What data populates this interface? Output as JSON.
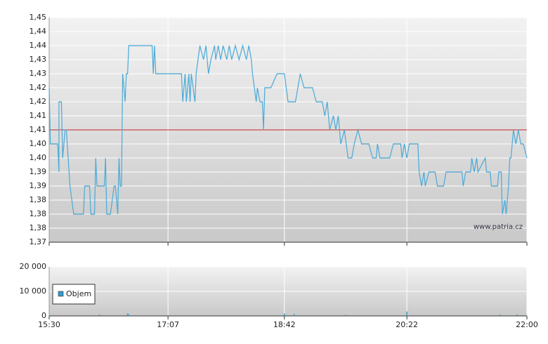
{
  "chart_data": [
    {
      "type": "line",
      "x": [
        "15:30",
        "15:31",
        "15:37",
        "15:38",
        "15:38",
        "15:40",
        "15:41",
        "15:43",
        "15:44",
        "15:47",
        "15:50",
        "15:58",
        "15:59",
        "16:03",
        "16:04",
        "16:07",
        "16:08",
        "16:09",
        "16:15",
        "16:16",
        "16:17",
        "16:20",
        "16:23",
        "16:24",
        "16:26",
        "16:27",
        "16:28",
        "16:29",
        "16:30",
        "16:32",
        "16:33",
        "16:34",
        "16:35",
        "16:54",
        "16:55",
        "16:56",
        "16:57",
        "16:59",
        "17:18",
        "17:19",
        "17:21",
        "17:22",
        "17:24",
        "17:25",
        "17:26",
        "17:29",
        "17:30",
        "17:33",
        "17:36",
        "17:38",
        "17:40",
        "17:42",
        "17:45",
        "17:46",
        "17:48",
        "17:50",
        "17:52",
        "17:55",
        "17:57",
        "17:59",
        "18:02",
        "18:05",
        "18:08",
        "18:11",
        "18:13",
        "18:15",
        "18:16",
        "18:19",
        "18:20",
        "18:22",
        "18:24",
        "18:25",
        "18:26",
        "18:31",
        "18:36",
        "18:42",
        "18:45",
        "18:51",
        "18:55",
        "18:58",
        "19:05",
        "19:08",
        "19:13",
        "19:15",
        "19:17",
        "19:18",
        "19:19",
        "19:22",
        "19:24",
        "19:26",
        "19:28",
        "19:31",
        "19:34",
        "19:37",
        "19:39",
        "19:42",
        "19:45",
        "19:51",
        "19:54",
        "19:57",
        "19:58",
        "20:00",
        "20:08",
        "20:11",
        "20:17",
        "20:18",
        "20:20",
        "20:22",
        "20:24",
        "20:31",
        "20:32",
        "20:34",
        "20:36",
        "20:37",
        "20:40",
        "20:45",
        "20:47",
        "20:52",
        "20:54",
        "21:07",
        "21:08",
        "21:10",
        "21:14",
        "21:15",
        "21:17",
        "21:19",
        "21:20",
        "21:26",
        "21:27",
        "21:30",
        "21:31",
        "21:36",
        "21:37",
        "21:39",
        "21:40",
        "21:42",
        "21:43",
        "21:45",
        "21:46",
        "21:47",
        "21:49",
        "21:51",
        "21:53",
        "21:55",
        "21:57",
        "22:00"
      ],
      "values": [
        1.425,
        1.405,
        1.405,
        1.395,
        1.42,
        1.42,
        1.4,
        1.41,
        1.41,
        1.39,
        1.38,
        1.38,
        1.39,
        1.39,
        1.38,
        1.38,
        1.4,
        1.39,
        1.39,
        1.4,
        1.38,
        1.38,
        1.39,
        1.39,
        1.38,
        1.4,
        1.39,
        1.39,
        1.43,
        1.42,
        1.43,
        1.43,
        1.44,
        1.44,
        1.43,
        1.44,
        1.43,
        1.43,
        1.43,
        1.42,
        1.43,
        1.42,
        1.43,
        1.42,
        1.43,
        1.42,
        1.43,
        1.44,
        1.435,
        1.44,
        1.43,
        1.435,
        1.44,
        1.435,
        1.44,
        1.435,
        1.44,
        1.435,
        1.44,
        1.435,
        1.44,
        1.435,
        1.44,
        1.435,
        1.44,
        1.435,
        1.43,
        1.42,
        1.425,
        1.42,
        1.42,
        1.41,
        1.425,
        1.425,
        1.43,
        1.43,
        1.42,
        1.42,
        1.43,
        1.425,
        1.425,
        1.42,
        1.42,
        1.415,
        1.42,
        1.415,
        1.41,
        1.415,
        1.41,
        1.415,
        1.405,
        1.41,
        1.4,
        1.4,
        1.405,
        1.41,
        1.405,
        1.405,
        1.4,
        1.4,
        1.405,
        1.4,
        1.4,
        1.405,
        1.405,
        1.4,
        1.405,
        1.4,
        1.405,
        1.405,
        1.395,
        1.39,
        1.395,
        1.39,
        1.395,
        1.395,
        1.39,
        1.39,
        1.395,
        1.395,
        1.39,
        1.395,
        1.395,
        1.4,
        1.395,
        1.4,
        1.395,
        1.4,
        1.395,
        1.395,
        1.39,
        1.39,
        1.395,
        1.395,
        1.38,
        1.385,
        1.38,
        1.39,
        1.4,
        1.4,
        1.41,
        1.405,
        1.41,
        1.405,
        1.405,
        1.4
      ],
      "color": "#4aaad8",
      "reference_line": {
        "value": 1.41,
        "color": "#cc2222"
      },
      "annotation": "www.patria.cz",
      "xlim": [
        "15:30",
        "22:00"
      ],
      "xticks": [
        "15:30",
        "17:07",
        "18:42",
        "20:22",
        "22:00"
      ],
      "ylim": [
        1.37,
        1.45
      ],
      "yticks": [
        {
          "value": 1.45,
          "label": "1,45"
        },
        {
          "value": 1.445,
          "label": "1,44"
        },
        {
          "value": 1.44,
          "label": "1,44"
        },
        {
          "value": 1.435,
          "label": "1,43"
        },
        {
          "value": 1.43,
          "label": "1,43"
        },
        {
          "value": 1.425,
          "label": "1,42"
        },
        {
          "value": 1.42,
          "label": "1,42"
        },
        {
          "value": 1.415,
          "label": "1,41"
        },
        {
          "value": 1.41,
          "label": "1,41"
        },
        {
          "value": 1.405,
          "label": "1,40"
        },
        {
          "value": 1.4,
          "label": "1,40"
        },
        {
          "value": 1.395,
          "label": "1,39"
        },
        {
          "value": 1.39,
          "label": "1,39"
        },
        {
          "value": 1.385,
          "label": "1,38"
        },
        {
          "value": 1.38,
          "label": "1,38"
        },
        {
          "value": 1.375,
          "label": "1,38"
        },
        {
          "value": 1.37,
          "label": "1,37"
        }
      ],
      "grid": true
    },
    {
      "type": "bar",
      "x": [
        "15:31",
        "16:11",
        "16:34",
        "16:35",
        "17:48",
        "18:42",
        "18:50",
        "19:32",
        "20:22",
        "21:38",
        "21:52"
      ],
      "series": [
        {
          "name": "Objem",
          "color": "#3399cc",
          "values": [
            300,
            600,
            1000,
            700,
            300,
            1000,
            800,
            500,
            1800,
            600,
            600
          ]
        }
      ],
      "legend": "upper left",
      "xlim": [
        "15:30",
        "22:00"
      ],
      "xticks": [
        "15:30",
        "17:07",
        "18:42",
        "20:22",
        "22:00"
      ],
      "ylim": [
        0,
        20000
      ],
      "yticks": [
        {
          "value": 0,
          "label": "0"
        },
        {
          "value": 10000,
          "label": "10 000"
        },
        {
          "value": 20000,
          "label": "20 000"
        }
      ],
      "grid": true
    }
  ]
}
